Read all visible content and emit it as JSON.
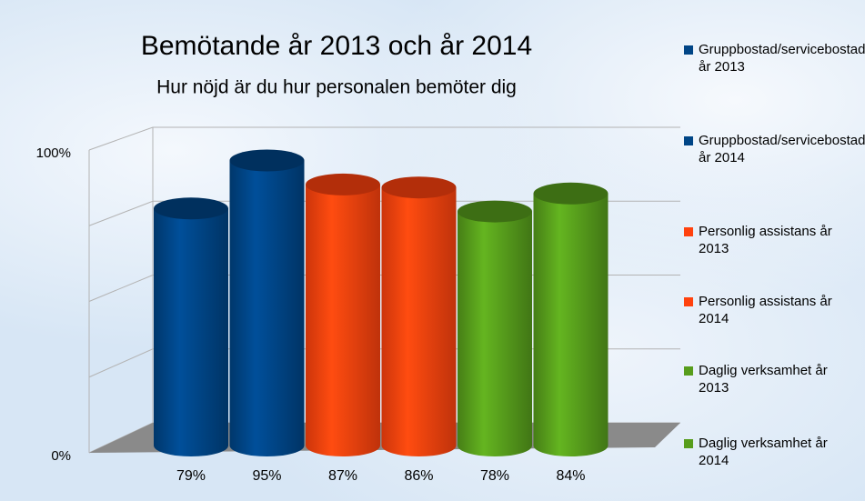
{
  "chart_data": {
    "type": "bar",
    "title": "Bemötande år 2013 och år 2014",
    "subtitle": "Hur nöjd är du hur personalen bemöter dig",
    "series": [
      {
        "name": "Gruppbostad/servicebostad år 2013",
        "color": "#004586",
        "values": [
          79
        ],
        "value_labels": [
          "79%"
        ]
      },
      {
        "name": "Gruppbostad/servicebostad år 2014",
        "color": "#004586",
        "values": [
          95
        ],
        "value_labels": [
          "95%"
        ]
      },
      {
        "name": "Personlig assistans år 2013",
        "color": "#ff420e",
        "values": [
          87
        ],
        "value_labels": [
          "87%"
        ]
      },
      {
        "name": "Personlig assistans år 2014",
        "color": "#ff420e",
        "values": [
          86
        ],
        "value_labels": [
          "86%"
        ]
      },
      {
        "name": "Daglig verksamhet år 2013",
        "color": "#579d1c",
        "values": [
          78
        ],
        "value_labels": [
          "78%"
        ]
      },
      {
        "name": "Daglig verksamhet år 2014",
        "color": "#579d1c",
        "values": [
          84
        ],
        "value_labels": [
          "84%"
        ]
      }
    ],
    "ylim": [
      0,
      100
    ],
    "yticks": [
      {
        "value": 0,
        "label": "0%"
      },
      {
        "value": 100,
        "label": "100%"
      }
    ],
    "gridlines": [
      0,
      25,
      50,
      75,
      100
    ],
    "grid": true,
    "legend": "right"
  }
}
